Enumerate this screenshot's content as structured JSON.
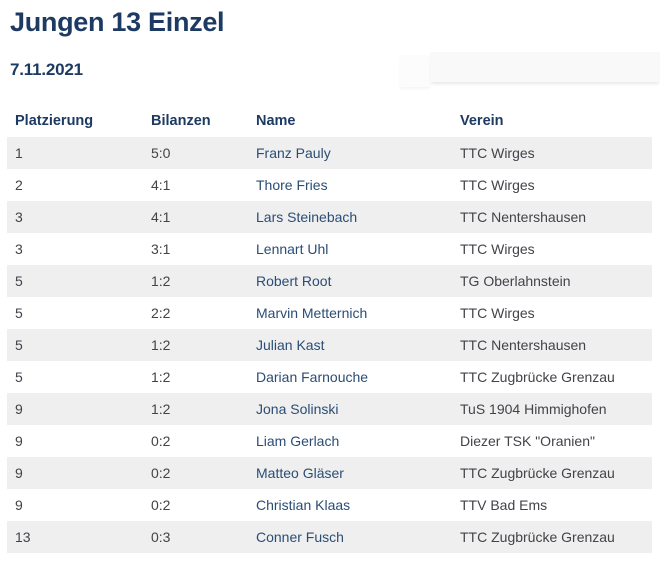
{
  "page": {
    "title": "Jungen 13 Einzel",
    "date": "7.11.2021"
  },
  "colors": {
    "title_navy": "#1d3a63",
    "name_link_navy": "#2b4d75",
    "zebra_row_gray": "#efefef",
    "body_text_gray": "#414349",
    "background": "#ffffff"
  },
  "table": {
    "columns": [
      "Platzierung",
      "Bilanzen",
      "Name",
      "Verein"
    ],
    "rows": [
      {
        "platzierung": "1",
        "bilanzen": "5:0",
        "name": "Franz Pauly",
        "verein": "TTC Wirges"
      },
      {
        "platzierung": "2",
        "bilanzen": "4:1",
        "name": "Thore Fries",
        "verein": "TTC Wirges"
      },
      {
        "platzierung": "3",
        "bilanzen": "4:1",
        "name": "Lars Steinebach",
        "verein": "TTC Nentershausen"
      },
      {
        "platzierung": "3",
        "bilanzen": "3:1",
        "name": "Lennart Uhl",
        "verein": "TTC Wirges"
      },
      {
        "platzierung": "5",
        "bilanzen": "1:2",
        "name": "Robert Root",
        "verein": "TG Oberlahnstein"
      },
      {
        "platzierung": "5",
        "bilanzen": "2:2",
        "name": "Marvin Metternich",
        "verein": "TTC Wirges"
      },
      {
        "platzierung": "5",
        "bilanzen": "1:2",
        "name": "Julian Kast",
        "verein": "TTC Nentershausen"
      },
      {
        "platzierung": "5",
        "bilanzen": "1:2",
        "name": "Darian Farnouche",
        "verein": "TTC Zugbrücke Grenzau"
      },
      {
        "platzierung": "9",
        "bilanzen": "1:2",
        "name": "Jona Solinski",
        "verein": "TuS 1904 Himmighofen"
      },
      {
        "platzierung": "9",
        "bilanzen": "0:2",
        "name": "Liam Gerlach",
        "verein": "Diezer TSK \"Oranien\""
      },
      {
        "platzierung": "9",
        "bilanzen": "0:2",
        "name": "Matteo Gläser",
        "verein": "TTC Zugbrücke Grenzau"
      },
      {
        "platzierung": "9",
        "bilanzen": "0:2",
        "name": "Christian Klaas",
        "verein": "TTV Bad Ems"
      },
      {
        "platzierung": "13",
        "bilanzen": "0:3",
        "name": "Conner Fusch",
        "verein": "TTC Zugbrücke Grenzau"
      }
    ]
  }
}
